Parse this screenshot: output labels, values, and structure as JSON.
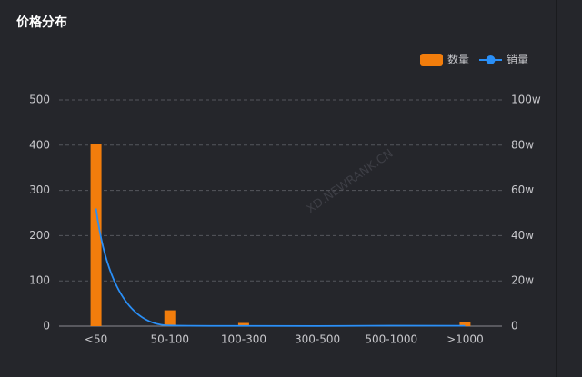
{
  "chart_data": {
    "type": "bar-line",
    "title": "价格分布",
    "watermark": "XD.NEWRANK.CN",
    "categories": [
      "<50",
      "50-100",
      "100-300",
      "300-500",
      "500-1000",
      ">1000"
    ],
    "series": [
      {
        "name": "数量",
        "type": "bar",
        "color": "#f27d0c",
        "values": [
          403,
          35,
          7,
          1,
          2,
          9
        ]
      },
      {
        "name": "销量",
        "type": "line",
        "axis": "y2",
        "color": "#2a8ff7",
        "values": [
          520000,
          3000,
          1000,
          500,
          2000,
          1500
        ]
      }
    ],
    "ylim": [
      0,
      500
    ],
    "yticks": [
      0,
      100,
      200,
      300,
      400,
      500
    ],
    "y2lim": [
      0,
      1000000
    ],
    "y2ticks": [
      0,
      {
        "value": 200000,
        "label": "20w"
      },
      {
        "value": 400000,
        "label": "40w"
      },
      {
        "value": 600000,
        "label": "60w"
      },
      {
        "value": 800000,
        "label": "80w"
      },
      {
        "value": 1000000,
        "label": "100w"
      }
    ],
    "grid": true
  }
}
